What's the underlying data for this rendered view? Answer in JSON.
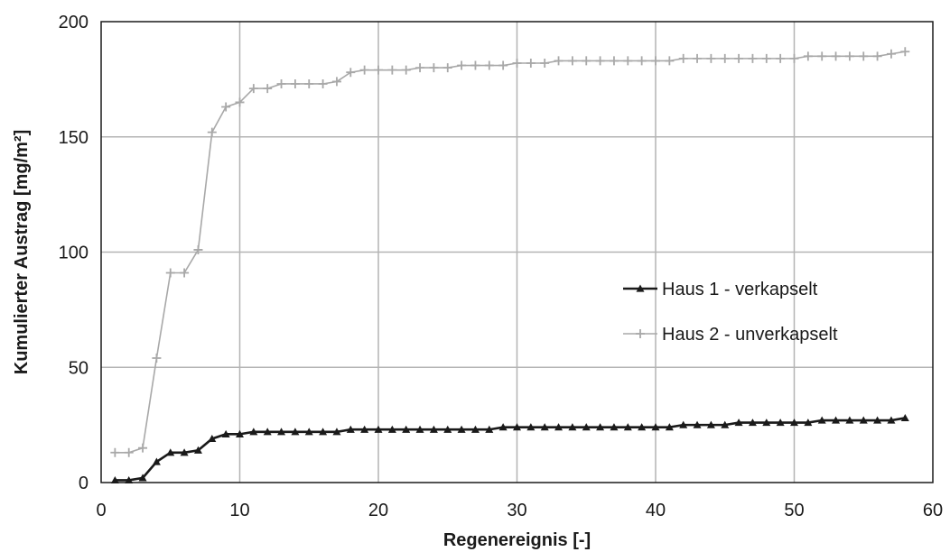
{
  "chart_data": {
    "type": "line",
    "xlabel": "Regenereignis [-]",
    "ylabel": "Kumulierter Austrag [mg/m²]",
    "xlim": [
      0,
      60
    ],
    "ylim": [
      0,
      200
    ],
    "xticks": [
      0,
      10,
      20,
      30,
      40,
      50,
      60
    ],
    "yticks": [
      0,
      50,
      100,
      150,
      200
    ],
    "xtick_labels": [
      "0",
      "10",
      "20",
      "30",
      "40",
      "50",
      "60"
    ],
    "ytick_labels": [
      "0",
      "50",
      "100",
      "150",
      "200"
    ],
    "grid": true,
    "legend_position": "right",
    "series": [
      {
        "name": "Haus 1 - verkapselt",
        "color": "#1a1a1a",
        "marker": "triangle",
        "x": [
          1,
          2,
          3,
          4,
          5,
          6,
          7,
          8,
          9,
          10,
          11,
          12,
          13,
          14,
          15,
          16,
          17,
          18,
          19,
          20,
          21,
          22,
          23,
          24,
          25,
          26,
          27,
          28,
          29,
          30,
          31,
          32,
          33,
          34,
          35,
          36,
          37,
          38,
          39,
          40,
          41,
          42,
          43,
          44,
          45,
          46,
          47,
          48,
          49,
          50,
          51,
          52,
          53,
          54,
          55,
          56,
          57,
          58
        ],
        "y": [
          1,
          1,
          2,
          9,
          13,
          13,
          14,
          19,
          21,
          21,
          22,
          22,
          22,
          22,
          22,
          22,
          22,
          23,
          23,
          23,
          23,
          23,
          23,
          23,
          23,
          23,
          23,
          23,
          24,
          24,
          24,
          24,
          24,
          24,
          24,
          24,
          24,
          24,
          24,
          24,
          24,
          25,
          25,
          25,
          25,
          26,
          26,
          26,
          26,
          26,
          26,
          27,
          27,
          27,
          27,
          27,
          27,
          28
        ]
      },
      {
        "name": "Haus 2 - unverkapselt",
        "color": "#a8a8a8",
        "marker": "plus",
        "x": [
          1,
          2,
          3,
          4,
          5,
          6,
          7,
          8,
          9,
          10,
          11,
          12,
          13,
          14,
          15,
          16,
          17,
          18,
          19,
          20,
          21,
          22,
          23,
          24,
          25,
          26,
          27,
          28,
          29,
          30,
          31,
          32,
          33,
          34,
          35,
          36,
          37,
          38,
          39,
          40,
          41,
          42,
          43,
          44,
          45,
          46,
          47,
          48,
          49,
          50,
          51,
          52,
          53,
          54,
          55,
          56,
          57,
          58
        ],
        "y": [
          13,
          13,
          15,
          54,
          91,
          91,
          101,
          152,
          163,
          165,
          171,
          171,
          173,
          173,
          173,
          173,
          174,
          178,
          179,
          179,
          179,
          179,
          180,
          180,
          180,
          181,
          181,
          181,
          181,
          182,
          182,
          182,
          183,
          183,
          183,
          183,
          183,
          183,
          183,
          183,
          183,
          184,
          184,
          184,
          184,
          184,
          184,
          184,
          184,
          184,
          185,
          185,
          185,
          185,
          185,
          185,
          186,
          187
        ]
      }
    ]
  }
}
